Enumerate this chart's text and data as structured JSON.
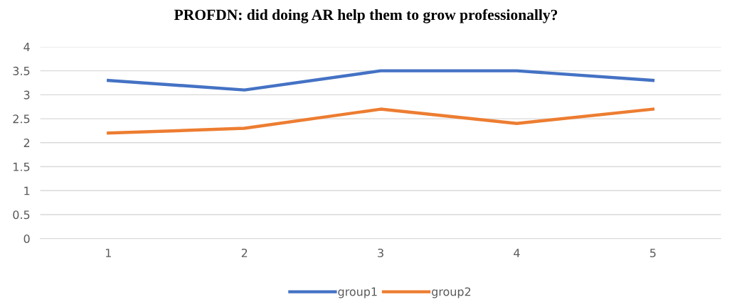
{
  "chart_data": {
    "type": "line",
    "title": "PROFDN: did doing AR help them to grow professionally?",
    "categories": [
      "1",
      "2",
      "3",
      "4",
      "5"
    ],
    "series": [
      {
        "name": "group1",
        "color": "#4472c4",
        "values": [
          3.3,
          3.1,
          3.5,
          3.5,
          3.3
        ]
      },
      {
        "name": "group2",
        "color": "#ed7d31",
        "values": [
          2.2,
          2.3,
          2.7,
          2.4,
          2.7
        ]
      }
    ],
    "ylim": [
      0,
      4
    ],
    "yticks": [
      0,
      0.5,
      1,
      1.5,
      2,
      2.5,
      3,
      3.5,
      4
    ],
    "grid": "y",
    "legend": "bottom",
    "marker": "none",
    "line_style": "solid"
  }
}
